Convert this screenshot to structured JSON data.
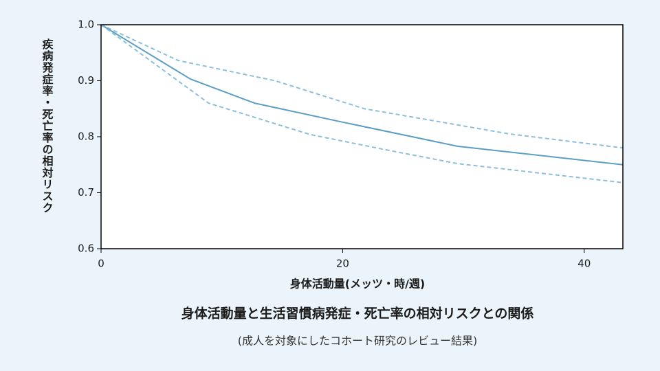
{
  "chart_data": {
    "type": "line",
    "title": "身体活動量と生活習慣病発症・死亡率の相対リスクとの関係",
    "subtitle": "(成人を対象にしたコホート研究のレビュー結果)",
    "x_label": "身体活動量(メッツ・時/週)",
    "y_label": "疾病発症率・死亡率の相対リスク",
    "series": [
      {
        "color": "#8cbfdc",
        "dashed": true,
        "x": [
          0,
          6.4,
          14.4,
          21.8,
          33.8,
          43.2
        ],
        "values": [
          1.0,
          0.936,
          0.9,
          0.85,
          0.805,
          0.78
        ]
      },
      {
        "color": "#5b9ec4",
        "dashed": false,
        "x": [
          0,
          7.4,
          12.7,
          20,
          29.5,
          43.2
        ],
        "values": [
          1.0,
          0.903,
          0.86,
          0.826,
          0.783,
          0.75
        ]
      },
      {
        "color": "#8cbfdc",
        "dashed": true,
        "x": [
          0,
          8.9,
          17.3,
          23.5,
          29.5,
          43.2
        ],
        "values": [
          1.0,
          0.86,
          0.804,
          0.777,
          0.752,
          0.718
        ]
      }
    ],
    "xlim": [
      0,
      43.2
    ],
    "xticks": [
      0,
      20,
      40
    ],
    "ylim": [
      0.6,
      1.0
    ],
    "yticks": [
      0.6,
      0.7,
      0.8,
      0.9,
      {
        "value": 1.0,
        "label": "1.0"
      }
    ],
    "grid": false
  }
}
